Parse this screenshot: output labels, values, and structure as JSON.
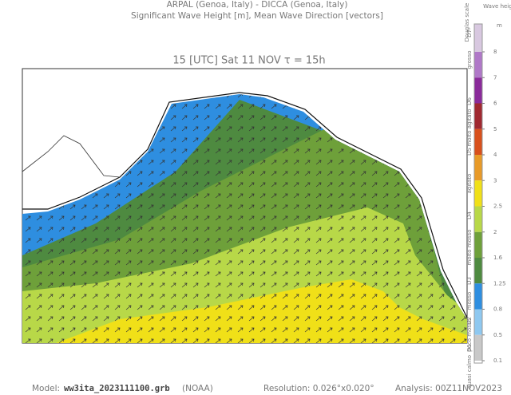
{
  "header": {
    "line1": "ARPAL (Genoa, Italy)  -  DICCA (Genoa, Italy)",
    "line2": "Significant Wave Height [m], Mean Wave Direction [vectors]",
    "subtitle": "15 [UTC] Sat 11 NOV  τ = 15h"
  },
  "footer": {
    "model_label": "Model:",
    "model": "ww3ita_2023111100.grb",
    "source": "(NOAA)",
    "resolution": "Resolution: 0.026°x0.020°",
    "analysis": "Analysis: 00Z11NOV2023"
  },
  "legend": {
    "title": "Wave height",
    "unit": "m",
    "ticks": [
      8,
      7,
      6,
      5,
      4,
      3,
      2.5,
      2,
      1.6,
      1.25,
      0.8,
      0.5,
      0.1
    ],
    "colors": [
      "#d8c8e0",
      "#b078c8",
      "#8a2a9a",
      "#a02830",
      "#d8501c",
      "#e89a28",
      "#f0e018",
      "#b8d848",
      "#6ea03a",
      "#4e8a40",
      "#2e8ee0",
      "#8ec8f0",
      "#c8c8c8"
    ]
  },
  "douglas": {
    "title": "Douglas scale",
    "levels": [
      "D7",
      "D6",
      "D5",
      "D4",
      "D3",
      "D2",
      "D1"
    ],
    "descriptions": [
      "grosso",
      "molto agitato",
      "agitato",
      "molto mosso",
      "mosso",
      "poco mosso",
      "quasi calmo"
    ]
  }
}
